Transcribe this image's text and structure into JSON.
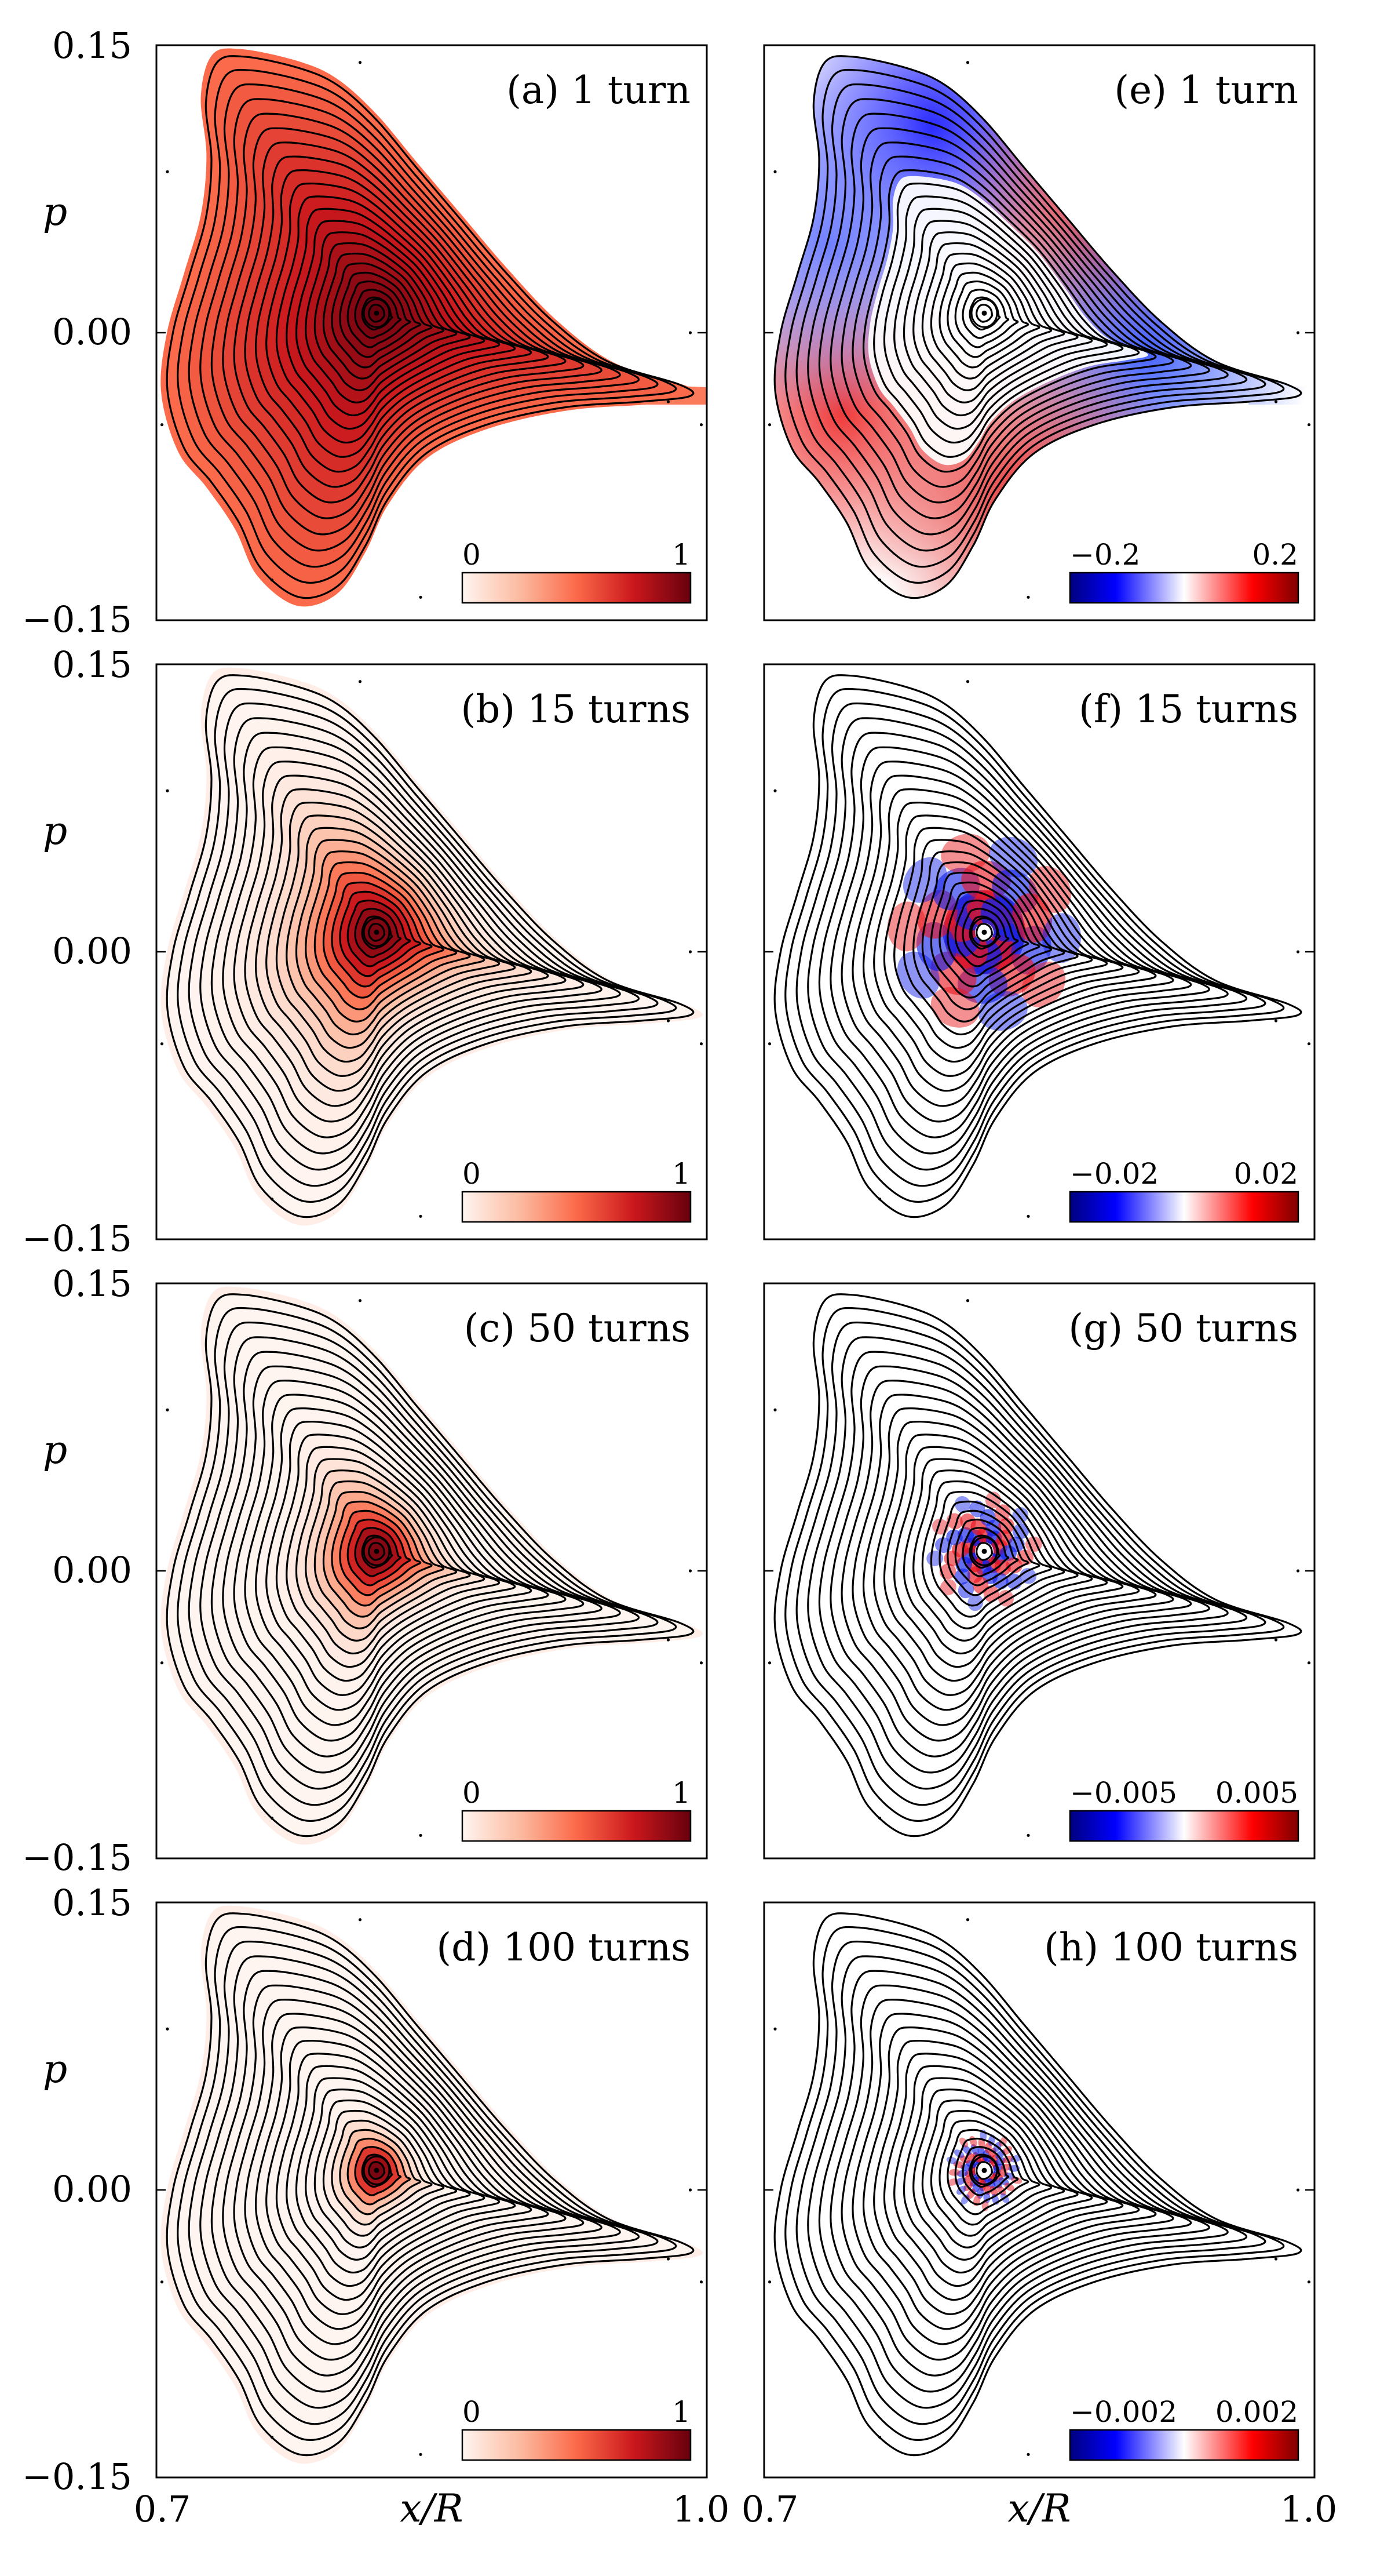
{
  "figure": {
    "xlabel": "x/R",
    "ylabel": "p",
    "x_ticks": [
      "0.7",
      "1.0"
    ],
    "y_ticks": [
      "0.15",
      "0.00",
      "−0.15"
    ]
  },
  "chart_data": [
    {
      "type": "heatmap",
      "id": "a",
      "title": "(a) 1 turn",
      "turns": 1,
      "quantity": "density",
      "colormap": "reds",
      "colorbar": {
        "min_label": "0",
        "max_label": "1",
        "min": 0,
        "max": 1
      },
      "xlim": [
        0.7,
        1.0
      ],
      "ylim": [
        -0.15,
        0.15
      ],
      "spread": 1.0,
      "mode": 0,
      "ring_freq": 0
    },
    {
      "type": "heatmap",
      "id": "b",
      "title": "(b) 15 turns",
      "turns": 15,
      "quantity": "density",
      "colormap": "reds",
      "colorbar": {
        "min_label": "0",
        "max_label": "1",
        "min": 0,
        "max": 1
      },
      "xlim": [
        0.7,
        1.0
      ],
      "ylim": [
        -0.15,
        0.15
      ],
      "spread": 0.55,
      "mode": 0,
      "ring_freq": 0
    },
    {
      "type": "heatmap",
      "id": "c",
      "title": "(c) 50 turns",
      "turns": 50,
      "quantity": "density",
      "colormap": "reds",
      "colorbar": {
        "min_label": "0",
        "max_label": "1",
        "min": 0,
        "max": 1
      },
      "xlim": [
        0.7,
        1.0
      ],
      "ylim": [
        -0.15,
        0.15
      ],
      "spread": 0.38,
      "mode": 0,
      "ring_freq": 0
    },
    {
      "type": "heatmap",
      "id": "d",
      "title": "(d) 100 turns",
      "turns": 100,
      "quantity": "density",
      "colormap": "reds",
      "colorbar": {
        "min_label": "0",
        "max_label": "1",
        "min": 0,
        "max": 1
      },
      "xlim": [
        0.7,
        1.0
      ],
      "ylim": [
        -0.15,
        0.15
      ],
      "spread": 0.22,
      "mode": 0,
      "ring_freq": 0
    },
    {
      "type": "heatmap",
      "id": "e",
      "title": "(e) 1 turn",
      "turns": 1,
      "quantity": "difference",
      "colormap": "bwr",
      "colorbar": {
        "min_label": "−0.2",
        "max_label": "0.2",
        "min": -0.2,
        "max": 0.2
      },
      "xlim": [
        0.7,
        1.0
      ],
      "ylim": [
        -0.15,
        0.15
      ],
      "spread": 1.0,
      "mode": 1,
      "ring_freq": 1
    },
    {
      "type": "heatmap",
      "id": "f",
      "title": "(f) 15 turns",
      "turns": 15,
      "quantity": "difference",
      "colormap": "bwr",
      "colorbar": {
        "min_label": "−0.02",
        "max_label": "0.02",
        "min": -0.02,
        "max": 0.02
      },
      "xlim": [
        0.7,
        1.0
      ],
      "ylim": [
        -0.15,
        0.15
      ],
      "spread": 0.58,
      "mode": 2,
      "ring_freq": 3
    },
    {
      "type": "heatmap",
      "id": "g",
      "title": "(g) 50 turns",
      "turns": 50,
      "quantity": "difference",
      "colormap": "bwr",
      "colorbar": {
        "min_label": "−0.005",
        "max_label": "0.005",
        "min": -0.005,
        "max": 0.005
      },
      "xlim": [
        0.7,
        1.0
      ],
      "ylim": [
        -0.15,
        0.15
      ],
      "spread": 0.36,
      "mode": 2,
      "ring_freq": 6
    },
    {
      "type": "heatmap",
      "id": "h",
      "title": "(h) 100 turns",
      "turns": 100,
      "quantity": "difference",
      "colormap": "bwr",
      "colorbar": {
        "min_label": "−0.002",
        "max_label": "0.002",
        "min": -0.002,
        "max": 0.002
      },
      "xlim": [
        0.7,
        1.0
      ],
      "ylim": [
        -0.15,
        0.15
      ],
      "spread": 0.24,
      "mode": 2,
      "ring_freq": 9
    }
  ]
}
